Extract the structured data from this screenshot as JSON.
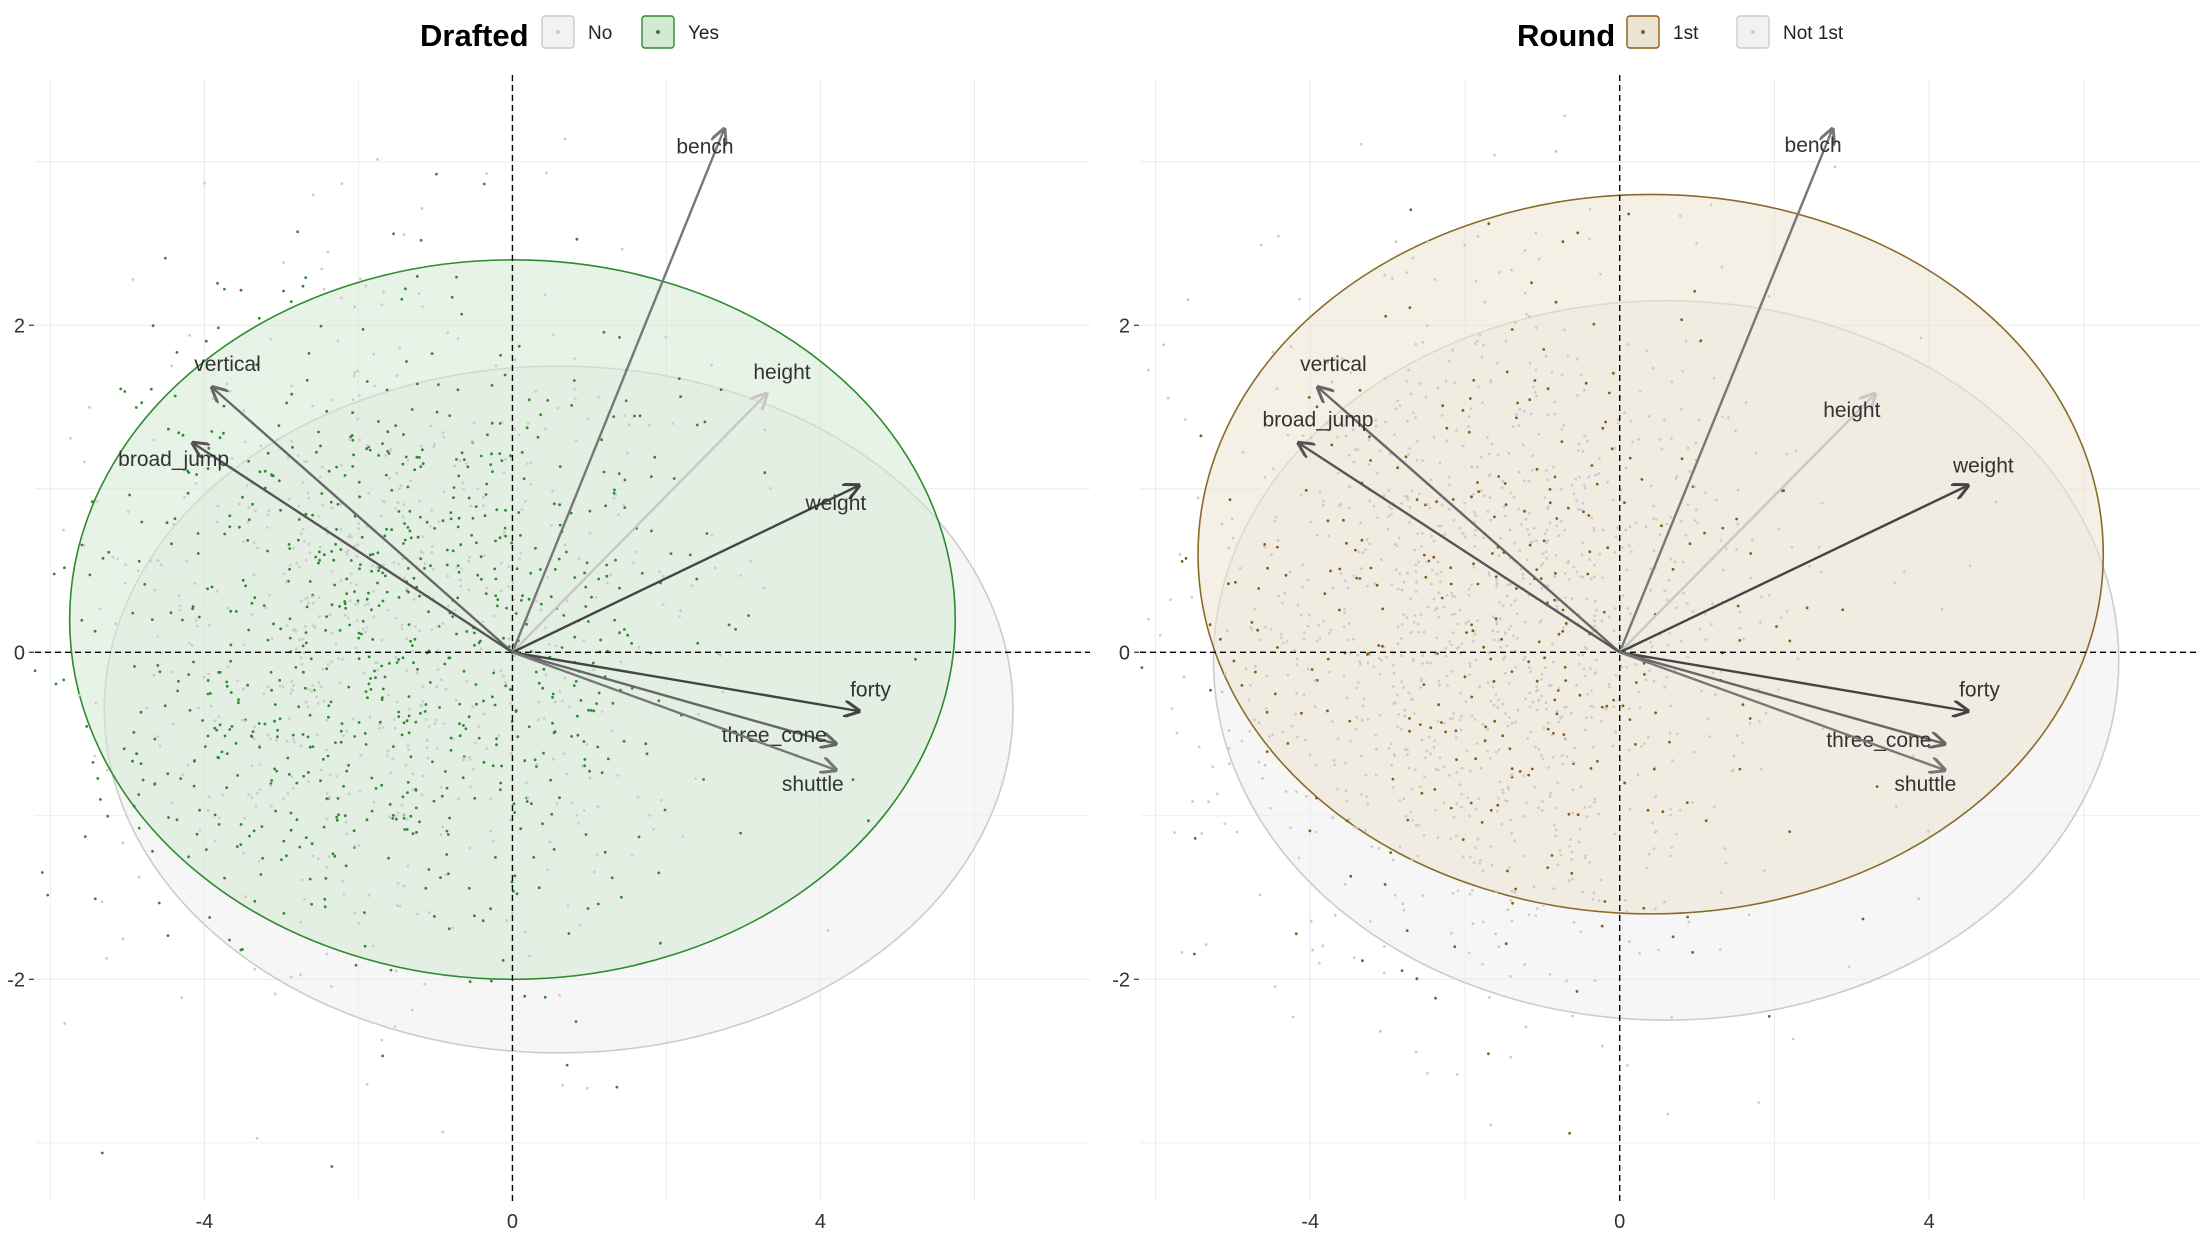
{
  "chart_data": [
    {
      "type": "scatter",
      "subtype": "pca-biplot",
      "legend": {
        "title": "Drafted",
        "placement": "top",
        "entries": [
          {
            "label": "No",
            "color": "#cccccc"
          },
          {
            "label": "Yes",
            "color": "#2e8b2e"
          }
        ]
      },
      "xlim": [
        -6.2,
        7.5
      ],
      "ylim": [
        -3.35,
        3.5
      ],
      "x_ticks": [
        {
          "value": -4,
          "label": "-4"
        },
        {
          "value": 0,
          "label": "0"
        },
        {
          "value": 4,
          "label": "4"
        }
      ],
      "y_ticks": [
        {
          "value": -2,
          "label": "-2"
        },
        {
          "value": 0,
          "label": "0"
        },
        {
          "value": 2,
          "label": "2"
        }
      ],
      "grid": true,
      "reference_lines": {
        "x": 0,
        "y": 0,
        "style": "dashed"
      },
      "ellipses": [
        {
          "group": "No",
          "cx": 0.6,
          "cy": -0.35,
          "rx": 5.9,
          "ry": 2.1,
          "fill": "#eeeeee",
          "stroke": "#cccccc"
        },
        {
          "group": "Yes",
          "cx": 0.0,
          "cy": 0.2,
          "rx": 5.75,
          "ry": 2.2,
          "fill": "#d3e9d3",
          "stroke": "#2e8b2e"
        }
      ],
      "arrows": [
        {
          "label": "bench",
          "x": 2.75,
          "y": 3.2,
          "lx": 2.5,
          "ly": 3.05,
          "color": "#777777"
        },
        {
          "label": "height",
          "x": 3.3,
          "y": 1.58,
          "lx": 3.5,
          "ly": 1.67,
          "color": "#c7c7c7"
        },
        {
          "label": "weight",
          "x": 4.5,
          "y": 1.02,
          "lx": 4.2,
          "ly": 0.87,
          "color": "#444444"
        },
        {
          "label": "vertical",
          "x": -3.9,
          "y": 1.62,
          "lx": -3.7,
          "ly": 1.72,
          "color": "#666666"
        },
        {
          "label": "broad_jump",
          "x": -4.15,
          "y": 1.28,
          "lx": -4.4,
          "ly": 1.14,
          "color": "#555555"
        },
        {
          "label": "forty",
          "x": 4.5,
          "y": -0.36,
          "lx": 4.65,
          "ly": -0.27,
          "color": "#444444"
        },
        {
          "label": "three_cone",
          "x": 4.2,
          "y": -0.56,
          "lx": 3.4,
          "ly": -0.55,
          "color": "#666666"
        },
        {
          "label": "shuttle",
          "x": 4.2,
          "y": -0.72,
          "lx": 3.9,
          "ly": -0.85,
          "color": "#777777"
        }
      ],
      "point_cloud": {
        "groups": [
          "No",
          "Yes"
        ],
        "center": [
          -1.6,
          0.1
        ],
        "spread": [
          1.9,
          1.0
        ]
      }
    },
    {
      "type": "scatter",
      "subtype": "pca-biplot",
      "legend": {
        "title": "Round",
        "placement": "top",
        "entries": [
          {
            "label": "1st",
            "color": "#8b5a14"
          },
          {
            "label": "Not 1st",
            "color": "#cccccc"
          }
        ]
      },
      "xlim": [
        -6.2,
        7.5
      ],
      "ylim": [
        -3.35,
        3.5
      ],
      "x_ticks": [
        {
          "value": -4,
          "label": "-4"
        },
        {
          "value": 0,
          "label": "0"
        },
        {
          "value": 4,
          "label": "4"
        }
      ],
      "y_ticks": [
        {
          "value": -2,
          "label": "-2"
        },
        {
          "value": 0,
          "label": "0"
        },
        {
          "value": 2,
          "label": "2"
        }
      ],
      "grid": true,
      "reference_lines": {
        "x": 0,
        "y": 0,
        "style": "dashed"
      },
      "ellipses": [
        {
          "group": "Not 1st",
          "cx": 0.6,
          "cy": -0.05,
          "rx": 5.85,
          "ry": 2.2,
          "fill": "#eeeeee",
          "stroke": "#cccccc"
        },
        {
          "group": "1st",
          "cx": 0.4,
          "cy": 0.6,
          "rx": 5.85,
          "ry": 2.2,
          "fill": "#ece4d2",
          "stroke": "#8b6a2a"
        }
      ],
      "arrows": [
        {
          "label": "bench",
          "x": 2.75,
          "y": 3.2,
          "lx": 2.5,
          "ly": 3.06,
          "color": "#777777"
        },
        {
          "label": "height",
          "x": 3.3,
          "y": 1.58,
          "lx": 3.0,
          "ly": 1.44,
          "color": "#c7c7c7"
        },
        {
          "label": "weight",
          "x": 4.5,
          "y": 1.02,
          "lx": 4.7,
          "ly": 1.1,
          "color": "#444444"
        },
        {
          "label": "vertical",
          "x": -3.9,
          "y": 1.62,
          "lx": -3.7,
          "ly": 1.72,
          "color": "#666666"
        },
        {
          "label": "broad_jump",
          "x": -4.15,
          "y": 1.28,
          "lx": -3.9,
          "ly": 1.38,
          "color": "#555555"
        },
        {
          "label": "forty",
          "x": 4.5,
          "y": -0.36,
          "lx": 4.65,
          "ly": -0.27,
          "color": "#444444"
        },
        {
          "label": "three_cone",
          "x": 4.2,
          "y": -0.56,
          "lx": 3.35,
          "ly": -0.58,
          "color": "#666666"
        },
        {
          "label": "shuttle",
          "x": 4.2,
          "y": -0.72,
          "lx": 3.95,
          "ly": -0.85,
          "color": "#777777"
        }
      ],
      "point_cloud": {
        "groups": [
          "1st",
          "Not 1st"
        ],
        "center": [
          -1.6,
          0.1
        ],
        "spread": [
          1.9,
          1.0
        ]
      }
    }
  ]
}
